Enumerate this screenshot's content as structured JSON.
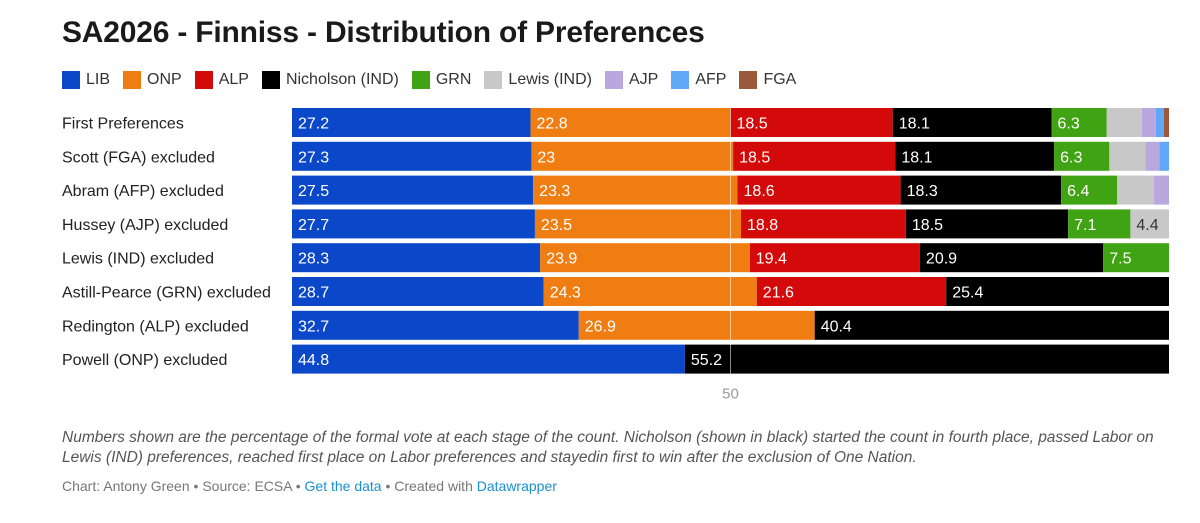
{
  "chart_data": {
    "type": "bar",
    "orientation": "horizontal-stacked",
    "title": "SA2026 - Finniss - Distribution of Preferences",
    "xlabel": "",
    "ylabel": "",
    "xlim": [
      0,
      100
    ],
    "reference_line": {
      "value": 50,
      "label": "50"
    },
    "legend": [
      {
        "name": "LIB",
        "color": "#0b47c9"
      },
      {
        "name": "ONP",
        "color": "#f07d12"
      },
      {
        "name": "ALP",
        "color": "#d40a0a"
      },
      {
        "name": "Nicholson (IND)",
        "color": "#000000"
      },
      {
        "name": "GRN",
        "color": "#3fa314"
      },
      {
        "name": "Lewis (IND)",
        "color": "#c8c8c8"
      },
      {
        "name": "AJP",
        "color": "#b9a7dd"
      },
      {
        "name": "AFP",
        "color": "#5fa8f7"
      },
      {
        "name": "FGA",
        "color": "#9c5a3a"
      }
    ],
    "categories": [
      "First Preferences",
      "Scott (FGA) excluded",
      "Abram (AFP) excluded",
      "Hussey (AJP) excluded",
      "Lewis (IND) excluded",
      "Astill-Pearce (GRN) excluded",
      "Redington (ALP) excluded",
      "Powell (ONP) excluded"
    ],
    "series": [
      {
        "name": "LIB",
        "values": [
          27.2,
          27.3,
          27.5,
          27.7,
          28.3,
          28.7,
          32.7,
          44.8
        ]
      },
      {
        "name": "ONP",
        "values": [
          22.8,
          23,
          23.3,
          23.5,
          23.9,
          24.3,
          26.9,
          0
        ]
      },
      {
        "name": "ALP",
        "values": [
          18.5,
          18.5,
          18.6,
          18.8,
          19.4,
          21.6,
          0,
          0
        ]
      },
      {
        "name": "Nicholson (IND)",
        "values": [
          18.1,
          18.1,
          18.3,
          18.5,
          20.9,
          25.4,
          40.4,
          55.2
        ]
      },
      {
        "name": "GRN",
        "values": [
          6.3,
          6.3,
          6.4,
          7.1,
          7.5,
          0,
          0,
          0
        ]
      },
      {
        "name": "Lewis (IND)",
        "values": [
          4.0,
          4.1,
          4.2,
          4.4,
          0,
          0,
          0,
          0
        ]
      },
      {
        "name": "AJP",
        "values": [
          1.6,
          1.6,
          1.7,
          0,
          0,
          0,
          0,
          0
        ]
      },
      {
        "name": "AFP",
        "values": [
          0.9,
          1.1,
          0,
          0,
          0,
          0,
          0,
          0
        ]
      },
      {
        "name": "FGA",
        "values": [
          0.6,
          0,
          0,
          0,
          0,
          0,
          0,
          0
        ]
      }
    ],
    "data_labels": [
      [
        "27.2",
        "22.8",
        "18.5",
        "18.1",
        "6.3",
        "",
        "",
        "",
        ""
      ],
      [
        "27.3",
        "23",
        "18.5",
        "18.1",
        "6.3",
        "",
        "",
        "",
        ""
      ],
      [
        "27.5",
        "23.3",
        "18.6",
        "18.3",
        "6.4",
        "",
        "",
        "",
        ""
      ],
      [
        "27.7",
        "23.5",
        "18.8",
        "18.5",
        "7.1",
        "4.4",
        "",
        "",
        ""
      ],
      [
        "28.3",
        "23.9",
        "19.4",
        "20.9",
        "7.5",
        "",
        "",
        "",
        ""
      ],
      [
        "28.7",
        "24.3",
        "21.6",
        "25.4",
        "",
        "",
        "",
        "",
        ""
      ],
      [
        "32.7",
        "26.9",
        "",
        "40.4",
        "",
        "",
        "",
        "",
        ""
      ],
      [
        "44.8",
        "",
        "",
        "55.2",
        "",
        "",
        "",
        "",
        ""
      ]
    ]
  },
  "notes": "Numbers shown are the percentage of the formal vote at each stage of the count. Nicholson (shown in black) started the count in fourth place, passed Labor on Lewis (IND) preferences, reached first place on Labor preferences and stayedin first to win after the exclusion of One Nation.",
  "footer": {
    "chart_credit": "Chart: Antony Green",
    "sep1": " • ",
    "source": "Source: ECSA",
    "sep2": " • ",
    "get_data": "Get the data",
    "sep3": " • ",
    "created_with": "Created with ",
    "tool": "Datawrapper"
  }
}
